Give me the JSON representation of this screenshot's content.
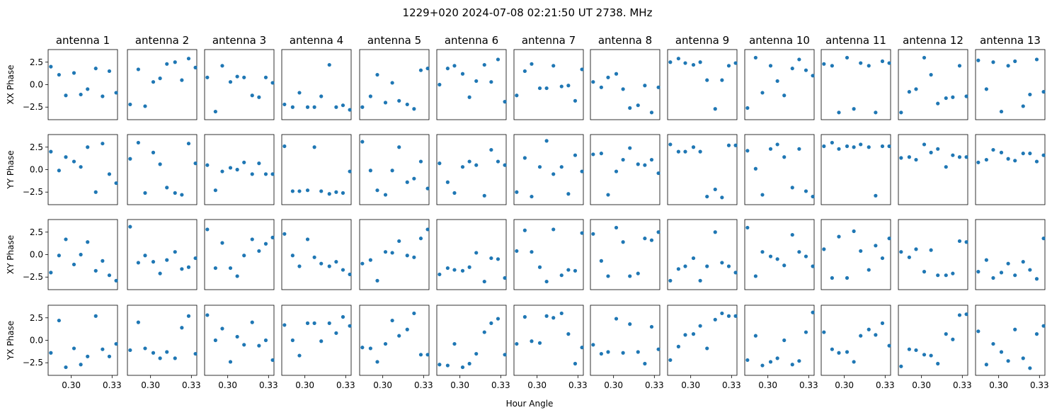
{
  "figure": {
    "title": "1229+020  2024-07-08 02:21:50 UT  2738. MHz",
    "xlabel": "Hour Angle"
  },
  "chart_data": {
    "type": "scatter",
    "grid": false,
    "marker_color": "#1f77b4",
    "antennas": [
      "antenna 1",
      "antenna 2",
      "antenna 3",
      "antenna 4",
      "antenna 5",
      "antenna 6",
      "antenna 7",
      "antenna 8",
      "antenna 9",
      "antenna 10",
      "antenna 11",
      "antenna 12",
      "antenna 13"
    ],
    "rows": [
      "XX Phase",
      "YY Phase",
      "XY Phase",
      "YX Phase"
    ],
    "xlim": [
      0.283,
      0.334
    ],
    "ylim": [
      -3.9,
      3.9
    ],
    "xticks": [
      0.3,
      0.33
    ],
    "xtick_labels": [
      "0.30",
      "0.33"
    ],
    "yticks": [
      2.5,
      0.0,
      -2.5
    ],
    "ytick_labels": [
      "2.5",
      "0.0",
      "−2.5"
    ],
    "x": [
      0.285,
      0.291,
      0.296,
      0.302,
      0.307,
      0.312,
      0.318,
      0.323,
      0.328,
      0.333
    ],
    "phases": [
      [
        [
          2.0,
          1.1,
          -1.2,
          1.3,
          -1.1,
          -0.5,
          1.8,
          -1.3,
          1.5,
          -0.9
        ],
        [
          -2.2,
          1.7,
          -2.4,
          0.3,
          0.7,
          2.3,
          2.5,
          0.5,
          2.9,
          1.9
        ],
        [
          0.8,
          -3.0,
          2.1,
          0.3,
          0.9,
          0.8,
          -1.2,
          -1.4,
          0.8,
          0.2
        ],
        [
          -2.2,
          -2.5,
          -0.9,
          -2.5,
          -2.5,
          -1.3,
          2.2,
          -2.5,
          -2.3,
          -2.8
        ],
        [
          -2.5,
          -1.3,
          1.1,
          -2.0,
          0.2,
          -1.8,
          -2.2,
          -2.7,
          1.6,
          1.8
        ],
        [
          0.0,
          1.8,
          2.1,
          1.2,
          -1.4,
          0.4,
          2.2,
          0.3,
          2.8,
          -1.9
        ],
        [
          -1.2,
          1.5,
          2.3,
          -0.4,
          -0.4,
          2.1,
          -0.2,
          -0.1,
          -1.8,
          1.7
        ],
        [
          0.3,
          -0.3,
          0.8,
          1.2,
          -0.5,
          -2.6,
          -2.3,
          -0.1,
          -3.1,
          -0.3
        ],
        [
          2.5,
          2.9,
          2.4,
          2.2,
          2.5,
          0.5,
          -2.7,
          0.5,
          2.1,
          2.4
        ],
        [
          -2.6,
          3.0,
          -0.9,
          2.1,
          0.4,
          -1.2,
          1.8,
          2.8,
          1.6,
          1.0
        ],
        [
          2.3,
          2.1,
          -3.1,
          3.0,
          -2.7,
          2.4,
          2.1,
          -3.1,
          2.6,
          2.4
        ],
        [
          -3.1,
          -0.8,
          -0.5,
          3.0,
          1.1,
          -2.1,
          -1.5,
          -1.4,
          2.1,
          -1.3
        ],
        [
          2.7,
          -0.5,
          2.5,
          -3.0,
          2.1,
          2.6,
          -2.4,
          -1.1,
          2.8,
          -0.8
        ]
      ],
      [
        [
          2.0,
          -0.1,
          1.4,
          0.9,
          0.3,
          2.5,
          -2.5,
          2.9,
          -0.5,
          -1.5
        ],
        [
          1.2,
          3.0,
          -2.6,
          1.9,
          0.6,
          -2.0,
          -2.6,
          -2.8,
          2.9,
          0.7
        ],
        [
          0.5,
          -2.3,
          -0.2,
          0.2,
          0.0,
          0.8,
          -0.5,
          0.7,
          -0.5,
          -0.5
        ],
        [
          2.6,
          -2.4,
          -2.4,
          -2.3,
          2.5,
          -2.4,
          -2.7,
          -2.5,
          -2.6,
          -0.2
        ],
        [
          3.1,
          -0.1,
          -2.3,
          -2.8,
          -0.1,
          2.5,
          -1.4,
          -1.0,
          0.9,
          -2.1
        ],
        [
          0.7,
          -1.4,
          -2.6,
          0.3,
          0.9,
          0.5,
          -2.9,
          2.2,
          0.9,
          0.5
        ],
        [
          -2.5,
          1.3,
          -3.0,
          0.3,
          3.2,
          -0.5,
          0.3,
          -2.7,
          1.6,
          -0.2
        ],
        [
          1.7,
          1.8,
          -2.8,
          -0.2,
          1.1,
          2.4,
          0.6,
          0.5,
          1.1,
          -0.4
        ],
        [
          2.8,
          2.0,
          2.0,
          2.5,
          2.0,
          -3.0,
          -2.2,
          -3.1,
          2.7,
          2.7
        ],
        [
          2.1,
          0.1,
          -2.8,
          2.3,
          2.8,
          1.4,
          -2.0,
          2.3,
          -2.4,
          -3.0
        ],
        [
          2.6,
          3.0,
          2.3,
          2.6,
          2.5,
          2.8,
          2.5,
          -2.9,
          2.6,
          2.6
        ],
        [
          1.3,
          1.4,
          1.1,
          2.8,
          1.9,
          2.3,
          0.3,
          1.6,
          1.4,
          1.4
        ],
        [
          0.8,
          1.1,
          2.2,
          1.9,
          1.2,
          1.0,
          1.8,
          1.8,
          0.9,
          1.6
        ]
      ],
      [
        [
          -2.0,
          -0.1,
          1.7,
          -1.1,
          0.0,
          1.4,
          -1.8,
          -0.7,
          -2.3,
          -2.9
        ],
        [
          3.1,
          -0.9,
          -0.1,
          -0.8,
          -2.1,
          -0.6,
          0.3,
          -1.6,
          -1.4,
          -0.4
        ],
        [
          2.8,
          -1.5,
          1.3,
          -1.5,
          -2.4,
          -0.1,
          1.7,
          0.4,
          1.2,
          1.9
        ],
        [
          2.3,
          -0.1,
          -1.3,
          1.7,
          -0.3,
          -1.0,
          -1.3,
          -0.8,
          -1.7,
          -2.2
        ],
        [
          -1.0,
          -0.6,
          -2.9,
          0.3,
          0.2,
          1.5,
          -0.1,
          -0.3,
          1.8,
          2.8
        ],
        [
          -2.2,
          -1.5,
          -1.7,
          -1.8,
          -1.4,
          0.2,
          -3.0,
          -0.4,
          -0.5,
          -2.6
        ],
        [
          0.4,
          2.7,
          0.3,
          -1.4,
          -3.0,
          2.8,
          -2.3,
          -1.7,
          -1.8,
          2.4
        ],
        [
          2.3,
          -0.7,
          -2.4,
          3.0,
          1.4,
          -2.4,
          -2.1,
          1.8,
          1.6,
          2.5
        ],
        [
          -2.9,
          -1.6,
          -1.3,
          -0.4,
          -2.9,
          -1.3,
          2.5,
          -0.9,
          -1.3,
          -2.0
        ],
        [
          3.0,
          -2.4,
          0.3,
          -0.2,
          -0.5,
          -1.2,
          2.2,
          0.3,
          -0.2,
          -1.3
        ],
        [
          0.6,
          -2.6,
          2.0,
          -2.6,
          2.6,
          0.4,
          -1.7,
          1.0,
          -0.4,
          1.8
        ],
        [
          0.3,
          -0.3,
          0.6,
          -1.9,
          0.5,
          -2.3,
          -2.3,
          -2.1,
          1.5,
          1.4
        ],
        [
          -1.9,
          -0.6,
          -2.6,
          -2.0,
          -1.0,
          -2.3,
          -0.8,
          -1.7,
          -2.7,
          1.8
        ]
      ],
      [
        [
          -1.4,
          2.2,
          -3.0,
          -0.9,
          -2.7,
          -1.8,
          2.7,
          -1.0,
          -1.8,
          -0.4
        ],
        [
          -1.1,
          2.0,
          -0.9,
          -1.4,
          -2.0,
          -1.3,
          -2.0,
          1.4,
          2.7,
          -1.5
        ],
        [
          2.8,
          0.0,
          1.3,
          -2.4,
          0.4,
          -0.5,
          2.0,
          -0.6,
          0.0,
          -2.2
        ],
        [
          1.7,
          0.0,
          -1.7,
          1.9,
          1.9,
          -0.1,
          1.9,
          0.8,
          2.6,
          1.6
        ],
        [
          -0.8,
          -0.9,
          -2.4,
          -0.4,
          2.2,
          0.5,
          1.2,
          3.0,
          -1.6,
          -1.6
        ],
        [
          -2.7,
          -2.8,
          -0.4,
          -3.0,
          -2.6,
          -1.5,
          0.9,
          1.9,
          2.4,
          -1.6
        ],
        [
          -0.4,
          2.6,
          -0.1,
          -0.3,
          2.7,
          2.5,
          3.0,
          0.7,
          -2.6,
          -0.8
        ],
        [
          -0.5,
          -1.5,
          -1.3,
          2.4,
          -1.4,
          1.8,
          -1.3,
          -2.6,
          1.5,
          -1.0
        ],
        [
          -2.2,
          -0.7,
          0.6,
          0.7,
          1.6,
          -0.9,
          2.3,
          3.0,
          2.7,
          2.7
        ],
        [
          -2.2,
          0.5,
          -2.8,
          -2.4,
          -2.0,
          0.0,
          -2.7,
          -2.3,
          0.9,
          3.1
        ],
        [
          0.9,
          -1.0,
          -1.4,
          -1.3,
          -2.4,
          0.5,
          1.2,
          0.6,
          1.9,
          -0.6
        ],
        [
          -2.9,
          -1.0,
          -1.1,
          -1.6,
          -1.7,
          -2.6,
          0.7,
          0.1,
          2.8,
          2.9
        ],
        [
          1.0,
          -2.7,
          -0.4,
          -1.3,
          -2.3,
          1.2,
          -2.0,
          -3.1,
          0.7,
          1.6
        ]
      ]
    ]
  }
}
